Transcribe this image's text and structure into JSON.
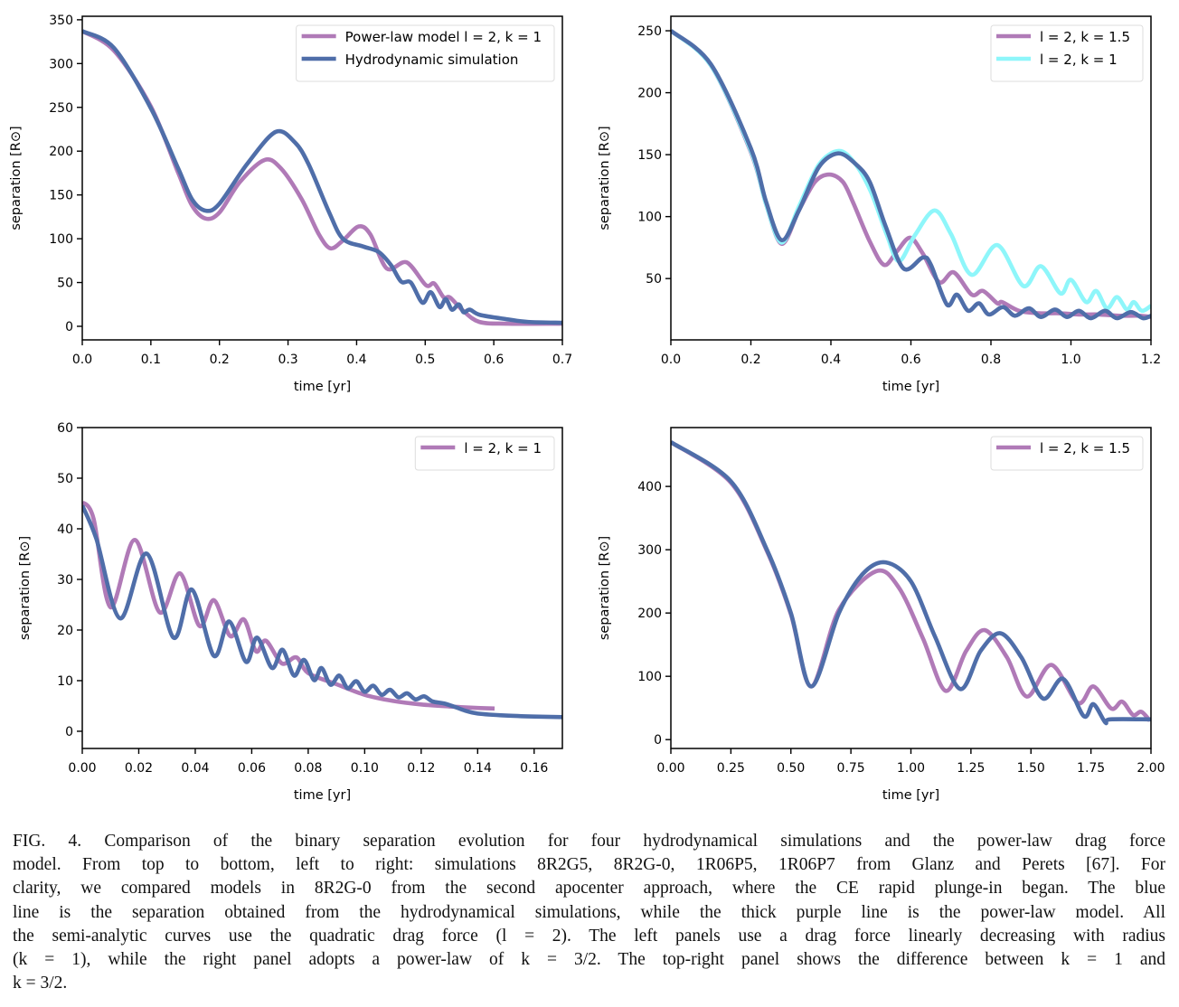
{
  "colors": {
    "purple": "#b07ab7",
    "blue": "#4f6ea9",
    "cyan": "#8ef6fa"
  },
  "chart_data": [
    {
      "type": "line",
      "xlabel": "time [yr]",
      "ylabel": "separation [R⊙]",
      "xlim": [
        0,
        0.7
      ],
      "ylim": [
        -15.5,
        354
      ],
      "xticks": [
        0,
        0.1,
        0.2,
        0.3,
        0.4,
        0.5,
        0.6,
        0.7
      ],
      "xtick_labels": [
        "0.0",
        "0.1",
        "0.2",
        "0.3",
        "0.4",
        "0.5",
        "0.6",
        "0.7"
      ],
      "yticks": [
        0,
        50,
        100,
        150,
        200,
        250,
        300,
        350
      ],
      "ytick_labels": [
        "0",
        "50",
        "100",
        "150",
        "200",
        "250",
        "300",
        "350"
      ],
      "legend": "top-right",
      "grid": false,
      "series": [
        {
          "name": "Power-law model l = 2, k = 1",
          "color": "purple",
          "x": [
            0,
            0.046,
            0.1,
            0.14,
            0.16,
            0.18,
            0.2,
            0.23,
            0.266,
            0.29,
            0.32,
            0.345,
            0.362,
            0.38,
            0.403,
            0.42,
            0.444,
            0.473,
            0.501,
            0.513,
            0.527,
            0.536,
            0.555,
            0.579,
            0.62,
            0.7
          ],
          "y": [
            337,
            315,
            251,
            175,
            138,
            123,
            130,
            165,
            190,
            180,
            145,
            105,
            89,
            98,
            114,
            105,
            66,
            73,
            47,
            49,
            33,
            33,
            18,
            5,
            3,
            3
          ]
        },
        {
          "name": "Hydrodynamic simulation",
          "color": "blue",
          "x": [
            0,
            0.046,
            0.1,
            0.14,
            0.16,
            0.18,
            0.2,
            0.24,
            0.282,
            0.31,
            0.33,
            0.36,
            0.38,
            0.41,
            0.432,
            0.45,
            0.465,
            0.479,
            0.496,
            0.508,
            0.521,
            0.53,
            0.539,
            0.549,
            0.556,
            0.565,
            0.58,
            0.62,
            0.65,
            0.7
          ],
          "y": [
            337,
            318,
            249,
            180,
            145,
            132,
            140,
            185,
            222,
            210,
            185,
            130,
            100,
            91,
            85,
            70,
            51,
            50,
            27,
            39,
            22,
            31,
            19,
            25,
            16,
            19,
            13,
            8,
            5,
            4
          ]
        }
      ]
    },
    {
      "type": "line",
      "xlabel": "time [yr]",
      "ylabel": "separation [R⊙]",
      "xlim": [
        0,
        1.2
      ],
      "ylim": [
        0.5,
        261.7
      ],
      "xticks": [
        0,
        0.2,
        0.4,
        0.6,
        0.8,
        1.0,
        1.2
      ],
      "xtick_labels": [
        "0.0",
        "0.2",
        "0.4",
        "0.6",
        "0.8",
        "1.0",
        "1.2"
      ],
      "yticks": [
        50,
        100,
        150,
        200,
        250
      ],
      "ytick_labels": [
        "50",
        "100",
        "150",
        "200",
        "250"
      ],
      "legend": "top-right",
      "grid": false,
      "series": [
        {
          "name": "l = 2, k = 1.5",
          "color": "purple",
          "x": [
            0,
            0.1,
            0.2,
            0.238,
            0.277,
            0.32,
            0.36,
            0.396,
            0.43,
            0.456,
            0.497,
            0.533,
            0.565,
            0.598,
            0.63,
            0.671,
            0.707,
            0.752,
            0.78,
            0.816,
            0.828,
            0.87,
            0.92,
            0.97,
            1.02,
            1.07,
            1.12,
            1.17,
            1.2
          ],
          "y": [
            250,
            222,
            152,
            110,
            78,
            105,
            128,
            134,
            128,
            111,
            80,
            61,
            72,
            83,
            70,
            47,
            55,
            37,
            40,
            30,
            31,
            24,
            22,
            22,
            21,
            21,
            20,
            20,
            19
          ]
        },
        {
          "name": "l = 2, k = 1",
          "color": "cyan",
          "x": [
            0,
            0.1,
            0.2,
            0.238,
            0.277,
            0.32,
            0.37,
            0.42,
            0.46,
            0.5,
            0.54,
            0.57,
            0.61,
            0.659,
            0.7,
            0.752,
            0.816,
            0.881,
            0.925,
            0.974,
            1.0,
            1.038,
            1.063,
            1.09,
            1.115,
            1.14,
            1.157,
            1.177,
            1.2
          ],
          "y": [
            250,
            222,
            153,
            110,
            79,
            108,
            142,
            153,
            143,
            120,
            85,
            64,
            85,
            105,
            86,
            53,
            77,
            44,
            60,
            38,
            49,
            31,
            40,
            26,
            35,
            25,
            31,
            24,
            28
          ]
        },
        {
          "color": "blue",
          "x": [
            0,
            0.1,
            0.2,
            0.238,
            0.277,
            0.32,
            0.37,
            0.418,
            0.46,
            0.497,
            0.537,
            0.582,
            0.63,
            0.65,
            0.69,
            0.715,
            0.743,
            0.77,
            0.795,
            0.83,
            0.86,
            0.895,
            0.925,
            0.96,
            0.99,
            1.02,
            1.05,
            1.085,
            1.115,
            1.15,
            1.18,
            1.2
          ],
          "y": [
            250,
            223,
            155,
            112,
            81,
            105,
            140,
            151,
            143,
            128,
            92,
            58,
            67,
            61,
            29,
            37,
            24,
            30,
            21,
            27,
            20,
            26,
            19,
            25,
            19,
            24,
            18,
            24,
            18,
            23,
            18,
            20
          ]
        }
      ]
    },
    {
      "type": "line",
      "xlabel": "time [yr]",
      "ylabel": "separation [R⊙]",
      "xlim": [
        0,
        0.17
      ],
      "ylim": [
        -3.4,
        60
      ],
      "xticks": [
        0,
        0.02,
        0.04,
        0.06,
        0.08,
        0.1,
        0.12,
        0.14,
        0.16
      ],
      "xtick_labels": [
        "0.00",
        "0.02",
        "0.04",
        "0.06",
        "0.08",
        "0.10",
        "0.12",
        "0.14",
        "0.16"
      ],
      "yticks": [
        0,
        10,
        20,
        30,
        40,
        50,
        60
      ],
      "ytick_labels": [
        "0",
        "10",
        "20",
        "30",
        "40",
        "50",
        "60"
      ],
      "legend": "top-right",
      "grid": false,
      "series": [
        {
          "name": "l = 2, k = 1",
          "color": "purple",
          "x": [
            0,
            0.004,
            0.01,
            0.0186,
            0.0274,
            0.0346,
            0.0415,
            0.0466,
            0.0524,
            0.0572,
            0.0615,
            0.065,
            0.0707,
            0.0758,
            0.08,
            0.09,
            0.1,
            0.11,
            0.12,
            0.13,
            0.14,
            0.146
          ],
          "y": [
            45.3,
            42,
            24.5,
            37.8,
            23.5,
            31.2,
            20.8,
            25.9,
            18.8,
            22.1,
            15.8,
            17.9,
            13.4,
            14.6,
            11.5,
            9.3,
            7.2,
            6.0,
            5.3,
            4.9,
            4.6,
            4.5
          ]
        },
        {
          "color": "blue",
          "x": [
            0,
            0.005,
            0.0134,
            0.0228,
            0.0323,
            0.0388,
            0.0466,
            0.052,
            0.058,
            0.0619,
            0.0672,
            0.0709,
            0.075,
            0.0785,
            0.0821,
            0.0847,
            0.0879,
            0.091,
            0.094,
            0.097,
            0.1,
            0.103,
            0.106,
            0.109,
            0.112,
            0.115,
            0.118,
            0.121,
            0.124,
            0.128,
            0.132,
            0.136,
            0.14,
            0.15,
            0.16,
            0.17
          ],
          "y": [
            44.6,
            38,
            22.3,
            35.1,
            18.5,
            28,
            14.9,
            21.7,
            13.7,
            18.5,
            12.5,
            16.1,
            11,
            14.1,
            10.1,
            12.5,
            9.2,
            11,
            8.5,
            9.9,
            7.8,
            9,
            7.2,
            8.2,
            6.7,
            7.5,
            6.3,
            6.9,
            5.9,
            5.5,
            4.8,
            4.0,
            3.5,
            3.1,
            2.9,
            2.8
          ]
        }
      ]
    },
    {
      "type": "line",
      "xlabel": "time [yr]",
      "ylabel": "separation [R⊙]",
      "xlim": [
        0,
        2.0
      ],
      "ylim": [
        -14,
        493
      ],
      "xticks": [
        0,
        0.25,
        0.5,
        0.75,
        1.0,
        1.25,
        1.5,
        1.75,
        2.0
      ],
      "xtick_labels": [
        "0.00",
        "0.25",
        "0.50",
        "0.75",
        "1.00",
        "1.25",
        "1.50",
        "1.75",
        "2.00"
      ],
      "yticks": [
        0,
        100,
        200,
        300,
        400
      ],
      "ytick_labels": [
        "0",
        "100",
        "200",
        "300",
        "400"
      ],
      "legend": "top-right",
      "grid": false,
      "series": [
        {
          "name": "l = 2, k = 1.5",
          "color": "purple",
          "x": [
            0,
            0.25,
            0.4,
            0.5,
            0.585,
            0.7,
            0.855,
            0.95,
            1.05,
            1.145,
            1.23,
            1.307,
            1.4,
            1.483,
            1.585,
            1.696,
            1.76,
            1.835,
            1.88,
            1.925,
            1.96,
            1.995
          ],
          "y": [
            470,
            406,
            298,
            198,
            84,
            205,
            266,
            240,
            160,
            77,
            140,
            173,
            130,
            68,
            118,
            58,
            84,
            49,
            60,
            39,
            44,
            30
          ]
        },
        {
          "color": "blue",
          "x": [
            0,
            0.25,
            0.4,
            0.5,
            0.585,
            0.7,
            0.8,
            0.895,
            1.0,
            1.1,
            1.205,
            1.29,
            1.373,
            1.46,
            1.55,
            1.634,
            1.72,
            1.76,
            1.81,
            1.83,
            2.0
          ],
          "y": [
            470,
            408,
            300,
            200,
            84,
            200,
            262,
            280,
            250,
            163,
            80,
            140,
            168,
            130,
            65,
            96,
            37,
            56,
            27,
            32,
            32
          ]
        }
      ]
    }
  ],
  "caption": {
    "lines": [
      "FIG. 4.  Comparison of the binary separation evolution for four hydrodynamical simulations and the power-law drag force",
      "model.  From top to bottom, left to right: simulations 8R2G5, 8R2G-0, 1R06P5, 1R06P7 from Glanz and Perets [67].  For",
      "clarity, we compared models in 8R2G-0 from the second apocenter approach, where the CE rapid plunge-in began.  The blue",
      "line is the separation obtained from the hydrodynamical simulations, while the thick purple line is the power-law model.  All",
      "the semi-analytic curves use the quadratic drag force (l = 2).  The left panels use a drag force linearly decreasing with radius",
      "(k = 1), while the right panel adopts a power-law of k = 3/2.  The top-right panel shows the difference between k = 1 and",
      "k = 3/2."
    ]
  }
}
